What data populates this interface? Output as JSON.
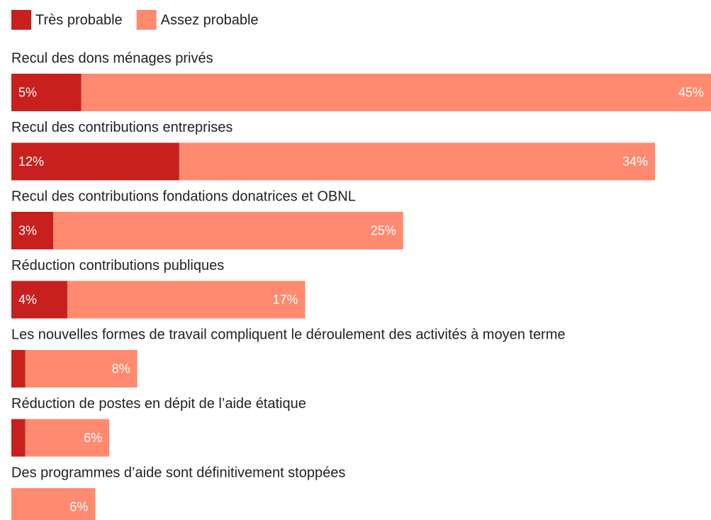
{
  "chart_data": {
    "type": "stacked-bar-horizontal",
    "categories": [
      "Recul des dons ménages privés",
      "Recul des contributions entreprises",
      "Recul des contributions fondations donatrices et OBNL",
      "Réduction contributions publiques",
      "Les nouvelles formes de travail compliquent le déroulement des activités à moyen terme",
      "Réduction de postes en dépit de l’aide étatique",
      "Des programmes d’aide sont définitivement stoppées"
    ],
    "series": [
      {
        "name": "Très probable",
        "color": "#c8201e",
        "values": [
          5,
          12,
          3,
          4,
          1,
          1,
          0
        ],
        "value_labels": [
          "5%",
          "12%",
          "3%",
          "4%",
          null,
          null,
          null
        ]
      },
      {
        "name": "Assez probable",
        "color": "#ff8a70",
        "values": [
          45,
          34,
          25,
          17,
          8,
          6,
          6
        ],
        "value_labels": [
          "45%",
          "34%",
          "25%",
          "17%",
          "8%",
          "6%",
          "6%"
        ]
      }
    ],
    "legend": "top-left"
  }
}
